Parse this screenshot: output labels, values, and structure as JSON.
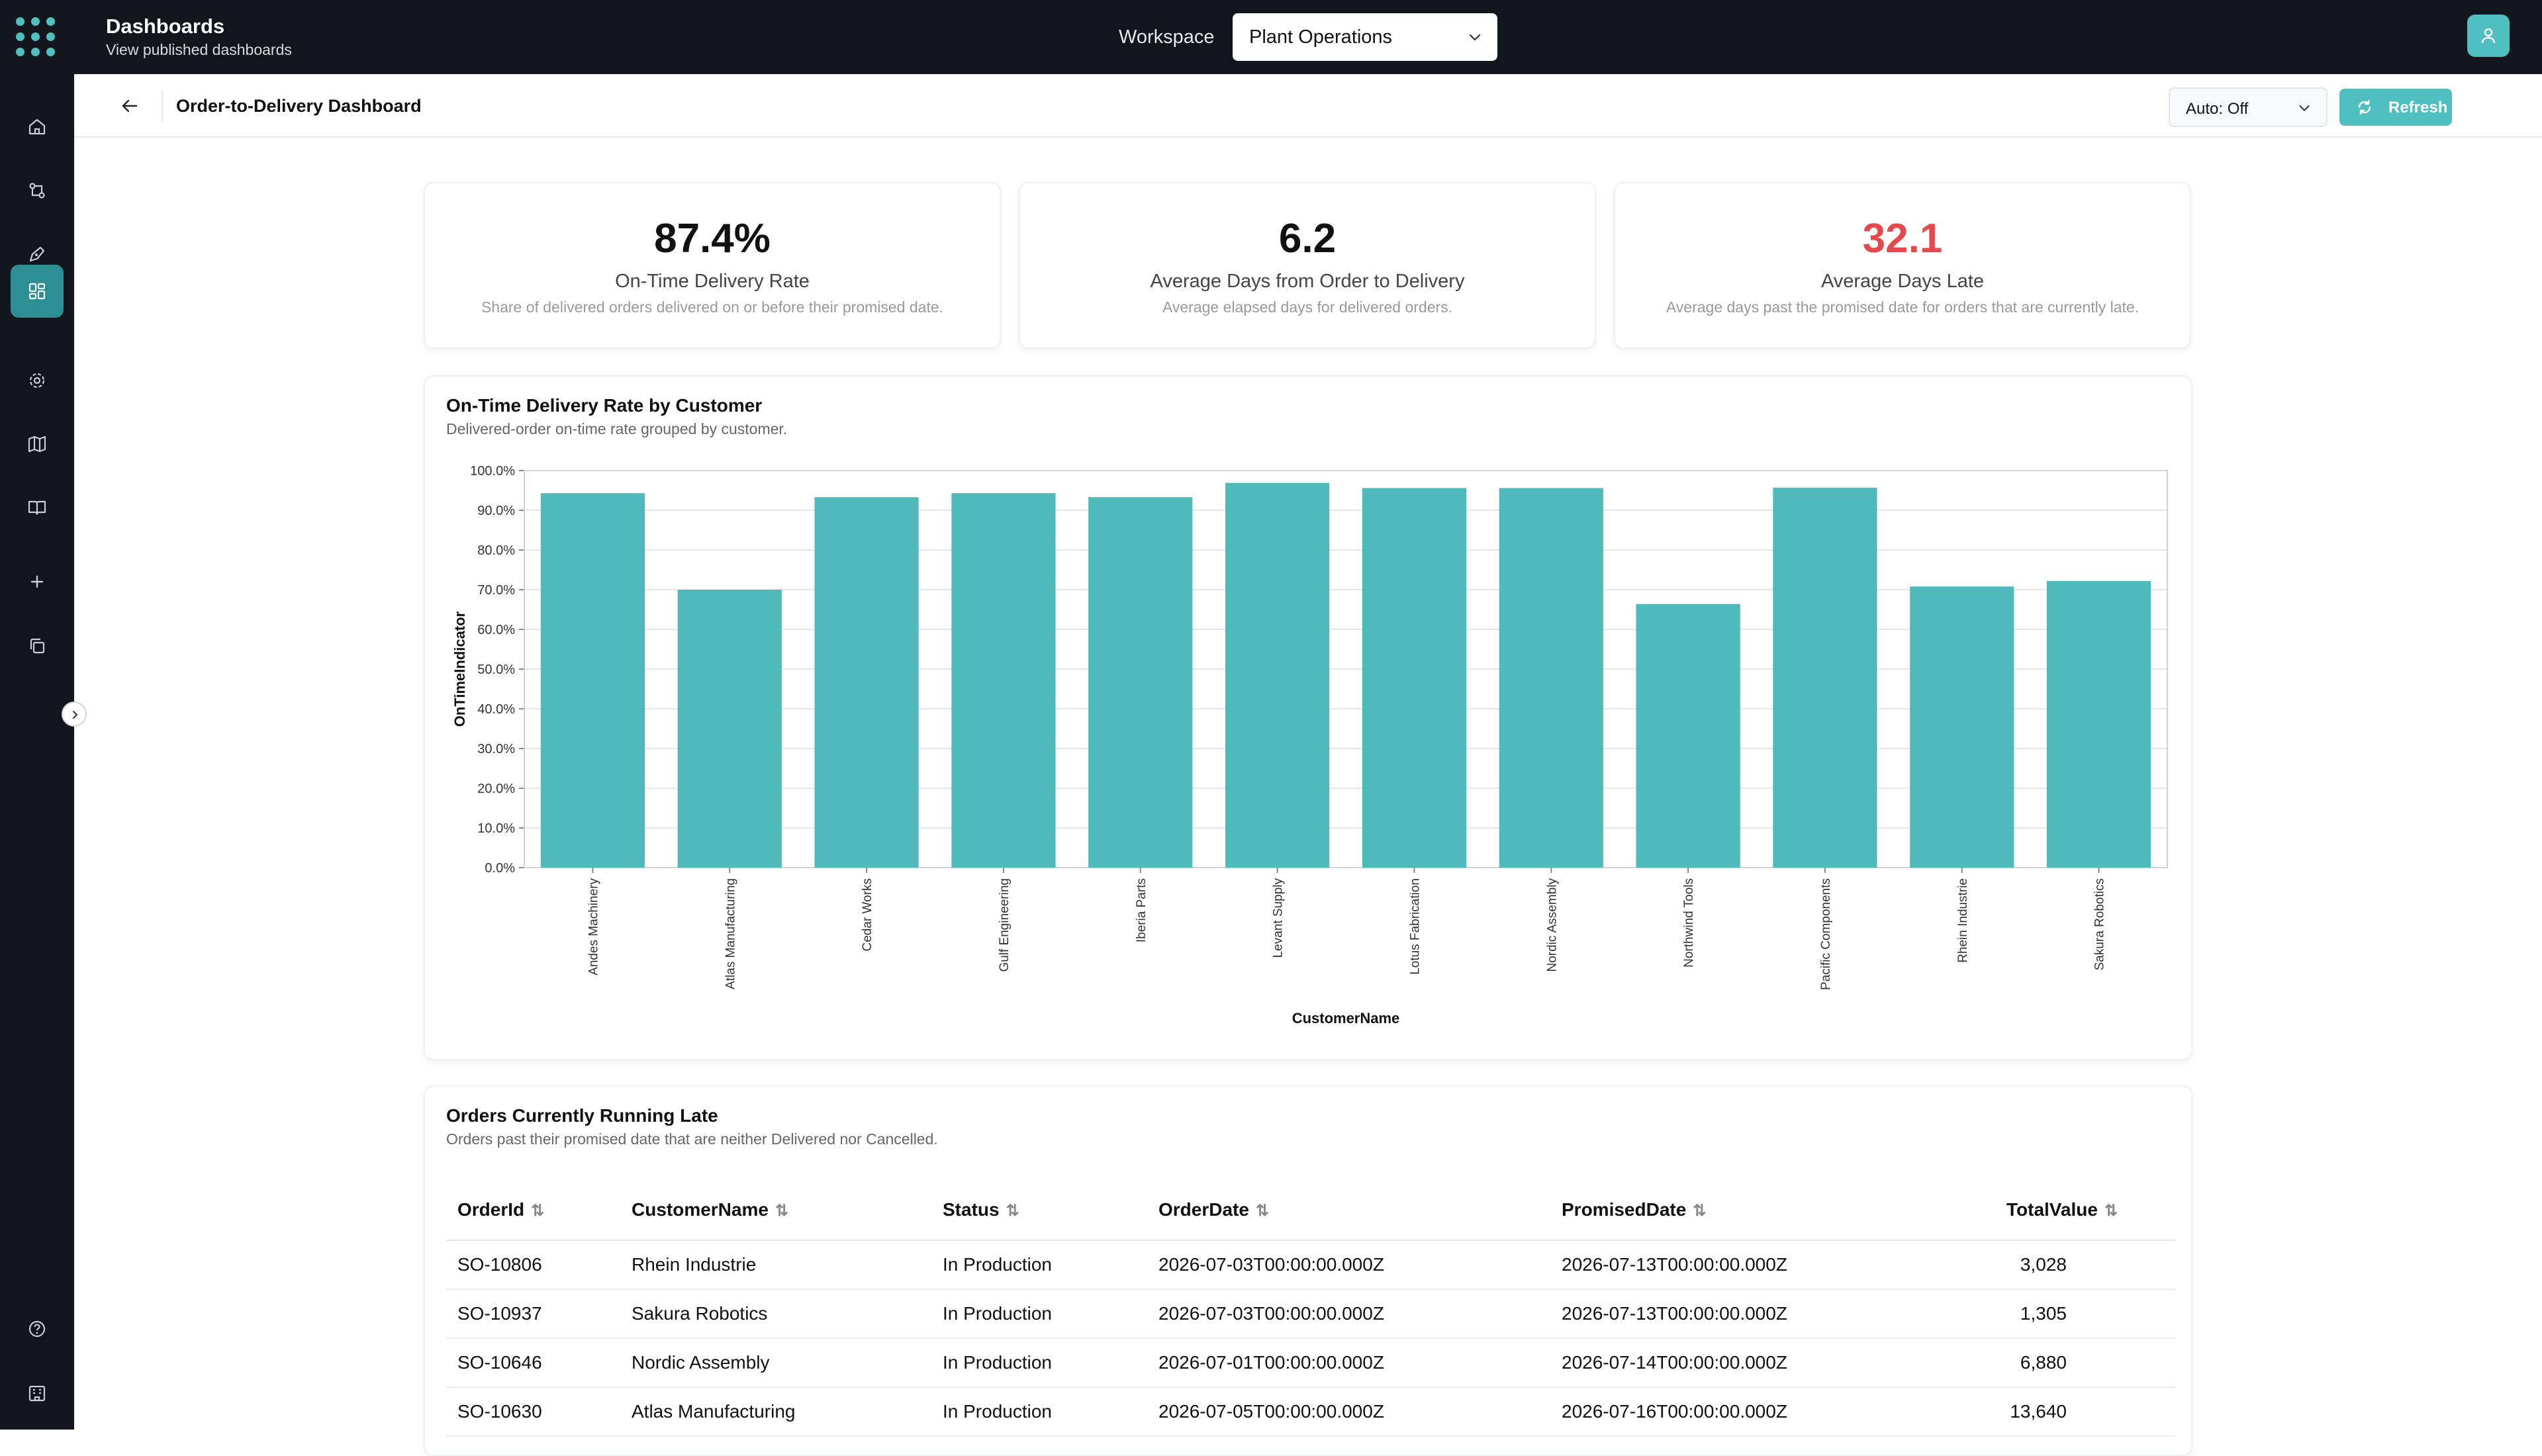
{
  "topbar": {
    "title": "Dashboards",
    "subtitle": "View published dashboards",
    "workspace_label": "Workspace",
    "workspace_value": "Plant Operations"
  },
  "sidebar": {
    "items": [
      {
        "name": "home",
        "icon": "home-icon"
      },
      {
        "name": "data-flows",
        "icon": "flow-icon"
      },
      {
        "name": "design",
        "icon": "pen-icon"
      },
      {
        "name": "dashboards",
        "icon": "grid-icon",
        "active": true
      },
      {
        "name": "settings",
        "icon": "gear-icon"
      },
      {
        "name": "map",
        "icon": "map-icon"
      },
      {
        "name": "docs",
        "icon": "book-icon"
      },
      {
        "name": "add",
        "icon": "plus-icon"
      },
      {
        "name": "copy",
        "icon": "copy-icon"
      },
      {
        "name": "help",
        "icon": "help-icon"
      },
      {
        "name": "organization",
        "icon": "building-icon"
      }
    ]
  },
  "subheader": {
    "title": "Order-to-Delivery Dashboard",
    "auto_refresh": "Auto: Off",
    "refresh_label": "Refresh"
  },
  "kpis": [
    {
      "value": "87.4%",
      "label": "On-Time Delivery Rate",
      "desc": "Share of delivered orders delivered on or before their promised date.",
      "color": "#111111"
    },
    {
      "value": "6.2",
      "label": "Average Days from Order to Delivery",
      "desc": "Average elapsed days for delivered orders.",
      "color": "#111111"
    },
    {
      "value": "32.1",
      "label": "Average Days Late",
      "desc": "Average days past the promised date for orders that are currently late.",
      "color": "#e5484d"
    }
  ],
  "chart_card": {
    "title": "On-Time Delivery Rate by Customer",
    "subtitle": "Delivered-order on-time rate grouped by customer."
  },
  "chart_data": {
    "type": "bar",
    "categories": [
      "Andes Machinery",
      "Atlas Manufacturing",
      "Cedar Works",
      "Gulf Engineering",
      "Iberia Parts",
      "Levant Supply",
      "Lotus Fabrication",
      "Nordic Assembly",
      "Northwind Tools",
      "Pacific Components",
      "Rhein Industrie",
      "Sakura Robotics"
    ],
    "values": [
      94.3,
      70.0,
      93.3,
      94.3,
      93.3,
      96.9,
      95.6,
      95.6,
      66.4,
      95.7,
      70.8,
      72.2
    ],
    "xlabel": "CustomerName",
    "ylabel": "OnTimeIndicator",
    "ylim": [
      0,
      100
    ],
    "yticks": [
      "0.0%",
      "10.0%",
      "20.0%",
      "30.0%",
      "40.0%",
      "50.0%",
      "60.0%",
      "70.0%",
      "80.0%",
      "90.0%",
      "100.0%"
    ],
    "bar_color": "#4fb9bb",
    "grid": true
  },
  "table_card": {
    "title": "Orders Currently Running Late",
    "subtitle": "Orders past their promised date that are neither Delivered nor Cancelled.",
    "columns": [
      "OrderId",
      "CustomerName",
      "Status",
      "OrderDate",
      "PromisedDate",
      "TotalValue"
    ],
    "rows": [
      [
        "SO-10806",
        "Rhein Industrie",
        "In Production",
        "2026-07-03T00:00:00.000Z",
        "2026-07-13T00:00:00.000Z",
        "3,028"
      ],
      [
        "SO-10937",
        "Sakura Robotics",
        "In Production",
        "2026-07-03T00:00:00.000Z",
        "2026-07-13T00:00:00.000Z",
        "1,305"
      ],
      [
        "SO-10646",
        "Nordic Assembly",
        "In Production",
        "2026-07-01T00:00:00.000Z",
        "2026-07-14T00:00:00.000Z",
        "6,880"
      ],
      [
        "SO-10630",
        "Atlas Manufacturing",
        "In Production",
        "2026-07-05T00:00:00.000Z",
        "2026-07-16T00:00:00.000Z",
        "13,640"
      ]
    ]
  }
}
